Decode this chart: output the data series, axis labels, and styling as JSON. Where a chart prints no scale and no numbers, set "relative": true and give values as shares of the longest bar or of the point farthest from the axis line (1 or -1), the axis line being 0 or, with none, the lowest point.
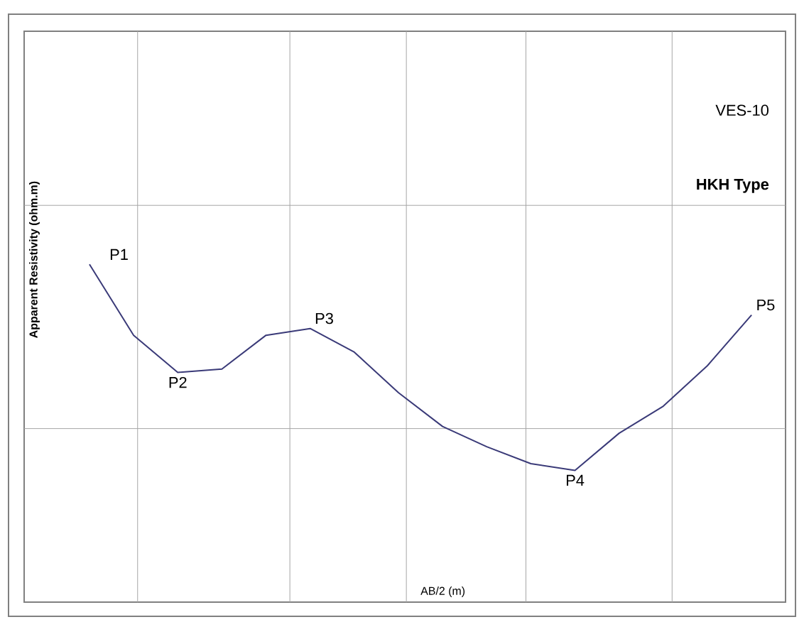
{
  "chart_data": {
    "type": "line",
    "title": "VES-10",
    "subtitle": "**HKH Type**",
    "xlabel": "AB/2 (m)",
    "ylabel": "Apparent Resistivity (ohm.m)",
    "relative": true,
    "grid": true,
    "color": "#3a3a78",
    "categories": [
      null,
      null,
      null,
      null,
      null,
      null,
      null,
      null,
      null,
      null,
      null,
      null,
      null,
      null,
      null,
      null
    ],
    "values": [
      1.0,
      0.79,
      0.68,
      0.69,
      0.79,
      0.81,
      0.74,
      0.62,
      0.52,
      0.46,
      0.41,
      0.39,
      0.5,
      0.58,
      0.7,
      0.85
    ],
    "annotations": [
      "P1",
      "P2",
      "P3",
      "P4",
      "P5"
    ]
  }
}
